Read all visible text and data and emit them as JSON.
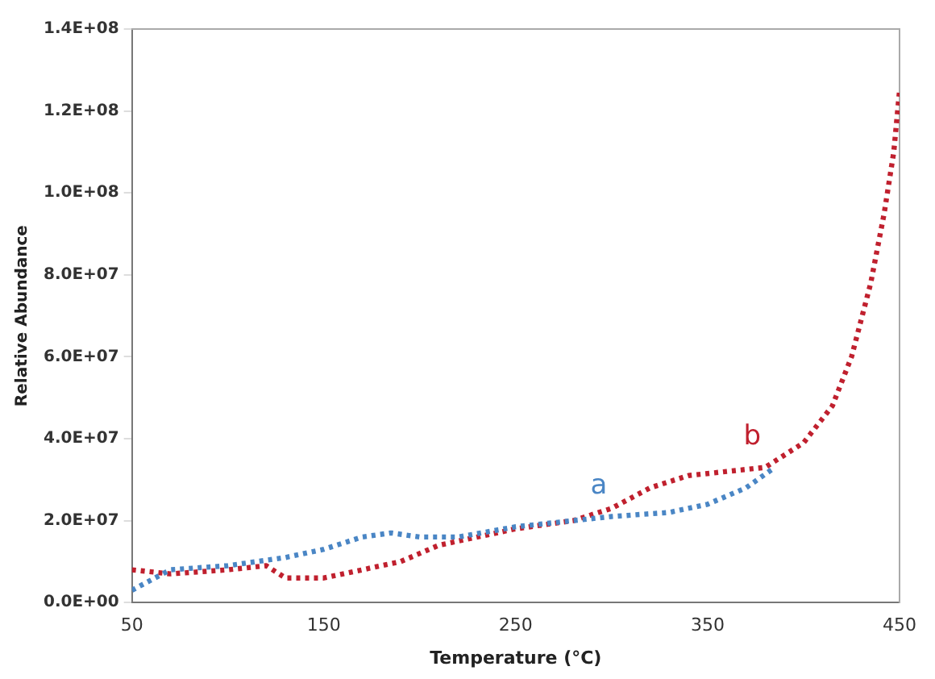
{
  "chart_data": {
    "type": "line",
    "xlabel": "Temperature (°C)",
    "ylabel": "Relative Abundance",
    "xlim": [
      50,
      450
    ],
    "xticks": [
      50,
      150,
      250,
      350,
      450
    ],
    "ylim": [
      0,
      140000000
    ],
    "yticks": [
      {
        "value": 0,
        "label": "0.0E+00"
      },
      {
        "value": 20000000,
        "label": "2.0E+07"
      },
      {
        "value": 40000000,
        "label": "4.0E+07"
      },
      {
        "value": 60000000,
        "label": "6.0E+07"
      },
      {
        "value": 80000000,
        "label": "8.0E+07"
      },
      {
        "value": 100000000,
        "label": "1.0E+08"
      },
      {
        "value": 120000000,
        "label": "1.2E+08"
      },
      {
        "value": 140000000,
        "label": "1.4E+08"
      }
    ],
    "grid": false,
    "legend": false,
    "line_style": "dotted",
    "marker": "none",
    "series": [
      {
        "name": "a",
        "color": "#4a86c5",
        "x": [
          50,
          70,
          100,
          130,
          150,
          170,
          185,
          200,
          220,
          250,
          280,
          300,
          330,
          350,
          370,
          385
        ],
        "values": [
          3000000,
          8000000,
          9000000,
          11000000,
          13000000,
          16000000,
          17000000,
          16000000,
          16000000,
          18500000,
          20000000,
          21000000,
          22000000,
          24000000,
          28000000,
          33000000
        ]
      },
      {
        "name": "b",
        "color": "#c0202e",
        "x": [
          50,
          70,
          100,
          120,
          130,
          150,
          170,
          190,
          210,
          230,
          250,
          280,
          300,
          320,
          340,
          360,
          380,
          400,
          415,
          425,
          435,
          442,
          447,
          450
        ],
        "values": [
          8000000,
          7000000,
          8000000,
          9000000,
          6000000,
          6000000,
          8000000,
          10000000,
          14000000,
          16000000,
          18000000,
          20000000,
          23000000,
          28000000,
          31000000,
          32000000,
          33000000,
          39000000,
          48000000,
          60000000,
          78000000,
          95000000,
          110000000,
          125000000
        ]
      }
    ]
  }
}
